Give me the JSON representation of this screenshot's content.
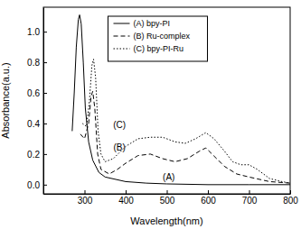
{
  "chart_data": {
    "type": "line",
    "x_label": "Wavelength(nm)",
    "y_label": "Absorbance(a.u.)",
    "xlim": [
      200,
      800
    ],
    "xticks": [
      300,
      400,
      500,
      600,
      700,
      800
    ],
    "ylim": [
      -0.06,
      1.16
    ],
    "yticks": [
      {
        "value": 0,
        "label": "0.0"
      },
      0.2,
      0.4,
      0.6,
      0.8,
      {
        "value": 1,
        "label": "1.0"
      }
    ],
    "grid": false,
    "legend": "top",
    "series": [
      {
        "name": "(A) bpy-PI",
        "color": "#000000",
        "line_style": "solid",
        "x": [
          270,
          275,
          280,
          285,
          288,
          292,
          297,
          302,
          310,
          320,
          335,
          350,
          400,
          450,
          500,
          600,
          700,
          800
        ],
        "values": [
          0.35,
          0.6,
          0.9,
          1.08,
          1.11,
          1.05,
          0.8,
          0.5,
          0.28,
          0.16,
          0.08,
          0.05,
          0.02,
          0.01,
          0.005,
          0,
          0,
          0
        ]
      },
      {
        "name": "(B) Ru-complex",
        "color": "#000000",
        "line_style": "dashed",
        "x": [
          290,
          300,
          310,
          316,
          320,
          325,
          332,
          340,
          360,
          380,
          400,
          430,
          460,
          490,
          520,
          550,
          580,
          595,
          610,
          640,
          670,
          700,
          750,
          800
        ],
        "values": [
          0.33,
          0.3,
          0.4,
          0.58,
          0.61,
          0.5,
          0.2,
          0.1,
          0.07,
          0.1,
          0.14,
          0.19,
          0.2,
          0.17,
          0.15,
          0.17,
          0.22,
          0.24,
          0.2,
          0.12,
          0.07,
          0.05,
          0.02,
          0.01
        ]
      },
      {
        "name": "(C) bpy-PI-Ru",
        "color": "#000000",
        "line_style": "dotted",
        "x": [
          295,
          305,
          312,
          318,
          322,
          327,
          333,
          340,
          350,
          370,
          400,
          430,
          460,
          490,
          520,
          545,
          570,
          595,
          615,
          640,
          660,
          680,
          700,
          720,
          750,
          780,
          800
        ],
        "values": [
          0.4,
          0.38,
          0.55,
          0.78,
          0.82,
          0.7,
          0.35,
          0.2,
          0.15,
          0.17,
          0.25,
          0.3,
          0.31,
          0.31,
          0.28,
          0.27,
          0.3,
          0.34,
          0.3,
          0.22,
          0.15,
          0.13,
          0.13,
          0.1,
          0.04,
          0.02,
          0.01
        ]
      }
    ],
    "annotations": [
      {
        "text": "(A)",
        "x": 505,
        "y": 0.03
      },
      {
        "text": "(B)",
        "x": 385,
        "y": 0.22
      },
      {
        "text": "(C)",
        "x": 385,
        "y": 0.37
      }
    ]
  }
}
